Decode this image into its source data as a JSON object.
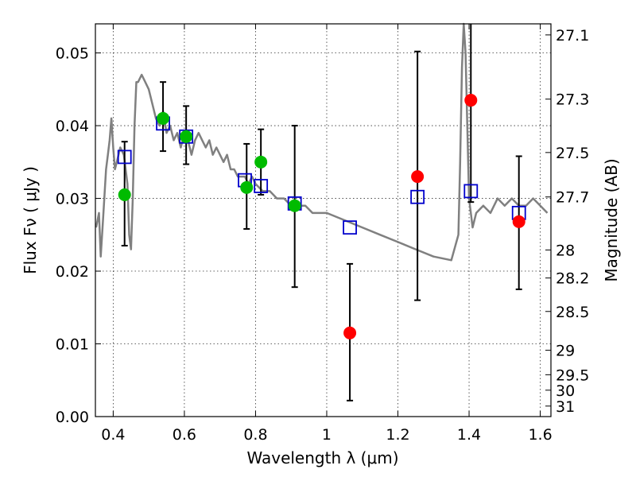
{
  "chart_data": {
    "type": "scatter",
    "xlabel": "Wavelength  λ (μm)",
    "ylabel": "Flux  Fν  ( μJy )",
    "ylabel_right": "Magnitude (AB)",
    "xlim": [
      0.35,
      1.63
    ],
    "ylim": [
      0.0,
      0.054
    ],
    "x_ticks": [
      0.4,
      0.6,
      0.8,
      1.0,
      1.2,
      1.4,
      1.6
    ],
    "x_tick_labels": [
      "0.4",
      "0.6",
      "0.8",
      "1",
      "1.2",
      "1.4",
      "1.6"
    ],
    "y_ticks": [
      0.0,
      0.01,
      0.02,
      0.03,
      0.04,
      0.05
    ],
    "y_tick_labels": [
      "0.00",
      "0.01",
      "0.02",
      "0.03",
      "0.04",
      "0.05"
    ],
    "right_ticks": [
      {
        "mag": 27.1,
        "label": "27.1"
      },
      {
        "mag": 27.3,
        "label": "27.3"
      },
      {
        "mag": 27.5,
        "label": "27.5"
      },
      {
        "mag": 27.7,
        "label": "27.7"
      },
      {
        "mag": 28.0,
        "label": "28"
      },
      {
        "mag": 28.2,
        "label": "28.2"
      },
      {
        "mag": 28.5,
        "label": "28.5"
      },
      {
        "mag": 29.0,
        "label": "29"
      },
      {
        "mag": 29.5,
        "label": "29.5"
      },
      {
        "mag": 30.0,
        "label": "30"
      },
      {
        "mag": 31.0,
        "label": "31"
      }
    ],
    "grid": true,
    "colors": {
      "model": "#808080",
      "green": "#00bb00",
      "red": "#ff0000",
      "square": "#0000cc",
      "error": "#000000"
    },
    "series": [
      {
        "name": "model spectrum",
        "type": "line",
        "x": [
          0.352,
          0.36,
          0.365,
          0.37,
          0.375,
          0.38,
          0.385,
          0.39,
          0.395,
          0.4,
          0.405,
          0.41,
          0.42,
          0.43,
          0.44,
          0.445,
          0.45,
          0.455,
          0.46,
          0.465,
          0.47,
          0.48,
          0.49,
          0.5,
          0.51,
          0.52,
          0.53,
          0.54,
          0.55,
          0.56,
          0.57,
          0.58,
          0.59,
          0.6,
          0.61,
          0.62,
          0.63,
          0.64,
          0.65,
          0.66,
          0.67,
          0.68,
          0.69,
          0.7,
          0.71,
          0.72,
          0.73,
          0.74,
          0.75,
          0.76,
          0.77,
          0.78,
          0.79,
          0.8,
          0.82,
          0.84,
          0.86,
          0.88,
          0.9,
          0.92,
          0.94,
          0.96,
          0.98,
          1.0,
          1.05,
          1.1,
          1.15,
          1.2,
          1.25,
          1.3,
          1.35,
          1.37,
          1.375,
          1.38,
          1.385,
          1.39,
          1.395,
          1.4,
          1.41,
          1.42,
          1.44,
          1.46,
          1.48,
          1.5,
          1.52,
          1.54,
          1.56,
          1.58,
          1.6,
          1.62
        ],
        "y": [
          0.026,
          0.028,
          0.022,
          0.026,
          0.03,
          0.034,
          0.036,
          0.038,
          0.041,
          0.037,
          0.034,
          0.035,
          0.037,
          0.036,
          0.032,
          0.025,
          0.023,
          0.03,
          0.04,
          0.046,
          0.046,
          0.047,
          0.046,
          0.045,
          0.043,
          0.041,
          0.04,
          0.042,
          0.039,
          0.04,
          0.038,
          0.039,
          0.037,
          0.039,
          0.038,
          0.036,
          0.038,
          0.039,
          0.038,
          0.037,
          0.038,
          0.036,
          0.037,
          0.036,
          0.035,
          0.036,
          0.034,
          0.034,
          0.033,
          0.033,
          0.033,
          0.032,
          0.033,
          0.032,
          0.031,
          0.031,
          0.03,
          0.03,
          0.029,
          0.029,
          0.029,
          0.028,
          0.028,
          0.028,
          0.027,
          0.026,
          0.025,
          0.024,
          0.023,
          0.022,
          0.0215,
          0.025,
          0.035,
          0.048,
          0.054,
          0.05,
          0.04,
          0.03,
          0.026,
          0.028,
          0.029,
          0.028,
          0.03,
          0.029,
          0.03,
          0.029,
          0.029,
          0.03,
          0.029,
          0.028
        ]
      },
      {
        "name": "observed (green)",
        "type": "scatter",
        "x": [
          0.432,
          0.54,
          0.605,
          0.775,
          0.815,
          0.91
        ],
        "y": [
          0.0305,
          0.041,
          0.0385,
          0.0315,
          0.035,
          0.029
        ]
      },
      {
        "name": "observed (red)",
        "type": "scatter",
        "x": [
          1.065,
          1.255,
          1.405,
          1.54
        ],
        "y": [
          0.0115,
          0.033,
          0.0435,
          0.0268
        ]
      },
      {
        "name": "model photometry (squares)",
        "type": "scatter",
        "x": [
          0.432,
          0.54,
          0.605,
          0.77,
          0.815,
          0.91,
          1.065,
          1.255,
          1.405,
          1.54
        ],
        "y": [
          0.0357,
          0.0403,
          0.0385,
          0.0325,
          0.0317,
          0.0293,
          0.026,
          0.0302,
          0.031,
          0.028
        ]
      },
      {
        "name": "error bars",
        "type": "errorbar",
        "x": [
          0.432,
          0.54,
          0.605,
          0.775,
          0.815,
          0.91,
          1.065,
          1.255,
          1.405,
          1.54
        ],
        "ylow": [
          0.0235,
          0.0365,
          0.0347,
          0.0258,
          0.0305,
          0.0178,
          0.0022,
          0.016,
          0.0295,
          0.0175
        ],
        "yhigh": [
          0.0378,
          0.046,
          0.0427,
          0.0375,
          0.0395,
          0.04,
          0.021,
          0.0502,
          0.054,
          0.0358
        ]
      }
    ]
  }
}
